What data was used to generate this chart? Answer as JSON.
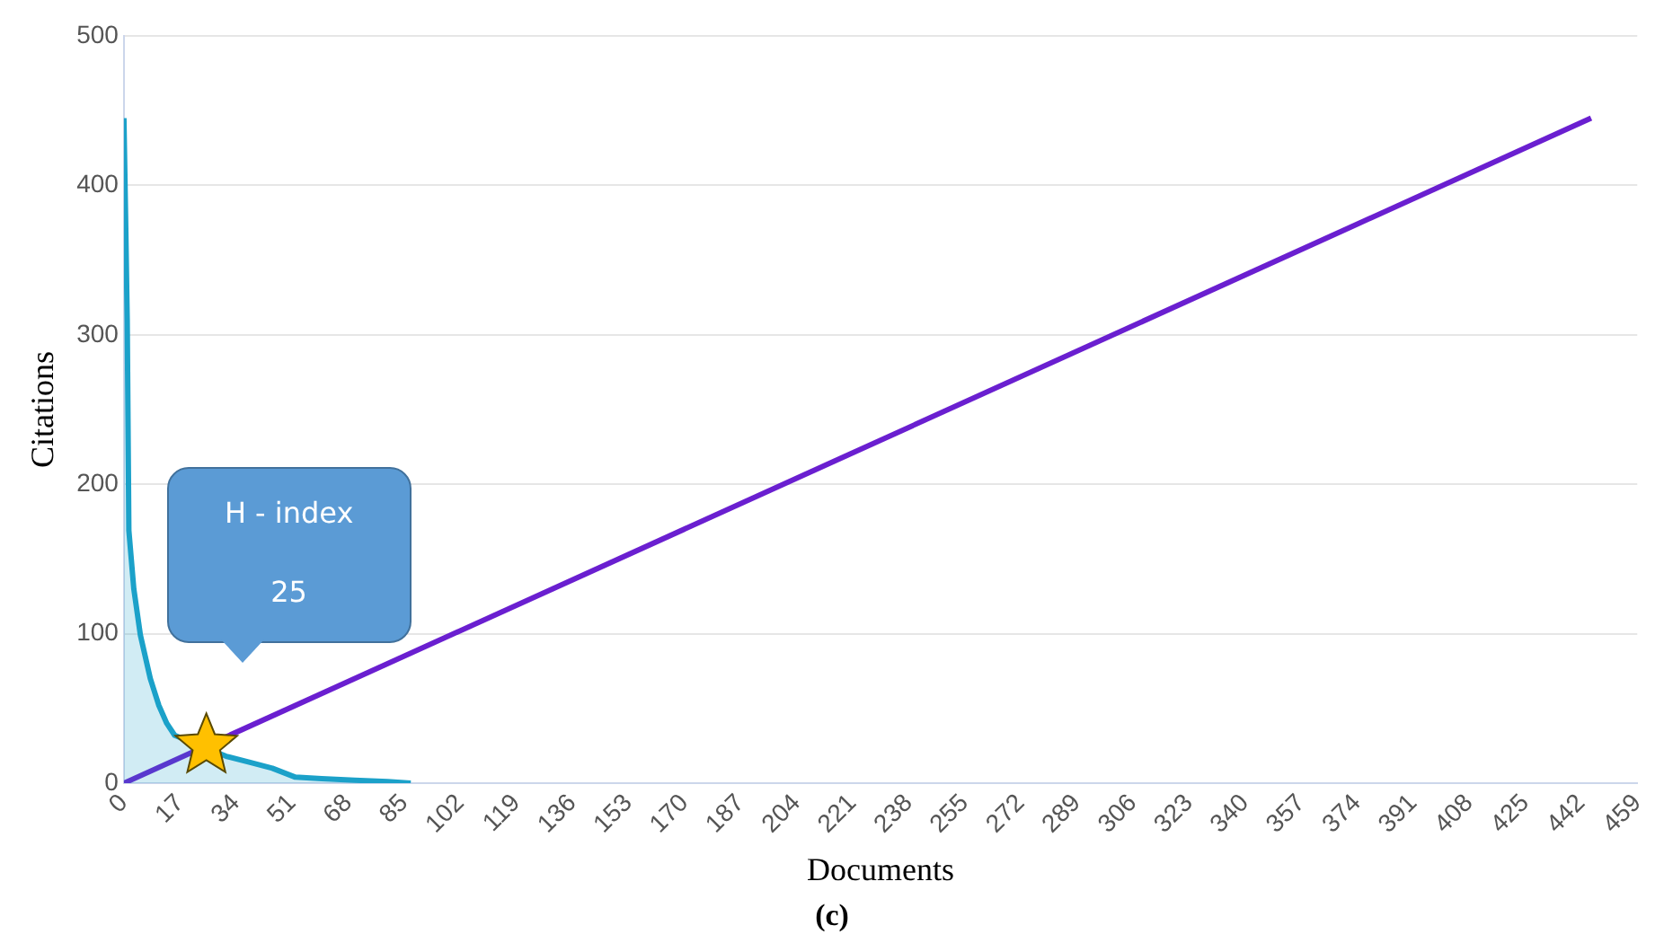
{
  "chart_data": {
    "type": "line",
    "xlabel": "Documents",
    "ylabel": "Citations",
    "xlim": [
      0,
      459
    ],
    "xticks": [
      0,
      17,
      34,
      51,
      68,
      85,
      102,
      119,
      136,
      153,
      170,
      187,
      204,
      221,
      238,
      255,
      272,
      289,
      306,
      323,
      340,
      357,
      374,
      391,
      408,
      425,
      442,
      459
    ],
    "ylim": [
      0,
      500
    ],
    "yticks": [
      0,
      100,
      200,
      300,
      400,
      500
    ],
    "grid": "y",
    "legend": false,
    "marker": "none",
    "series": [
      {
        "type": "area",
        "color": "#1ba1c9",
        "x": [
          0,
          0.5,
          1,
          1.5,
          3,
          5,
          8,
          10.6,
          13,
          15.4,
          31,
          38,
          45,
          52,
          60,
          70,
          80,
          87
        ],
        "values": [
          445,
          380,
          310,
          169,
          130,
          99,
          70,
          52,
          40,
          32,
          18,
          14,
          10,
          4,
          3,
          2,
          1,
          0
        ]
      },
      {
        "type": "line",
        "color": "#6a1fd0",
        "x": [
          0,
          445
        ],
        "values": [
          0,
          445
        ]
      },
      {
        "type": "scatter",
        "color": "#ffc000",
        "marker": "star",
        "x": [
          25
        ],
        "values": [
          25
        ]
      }
    ],
    "annotations": [
      "H - index",
      "25",
      "(c)"
    ]
  }
}
